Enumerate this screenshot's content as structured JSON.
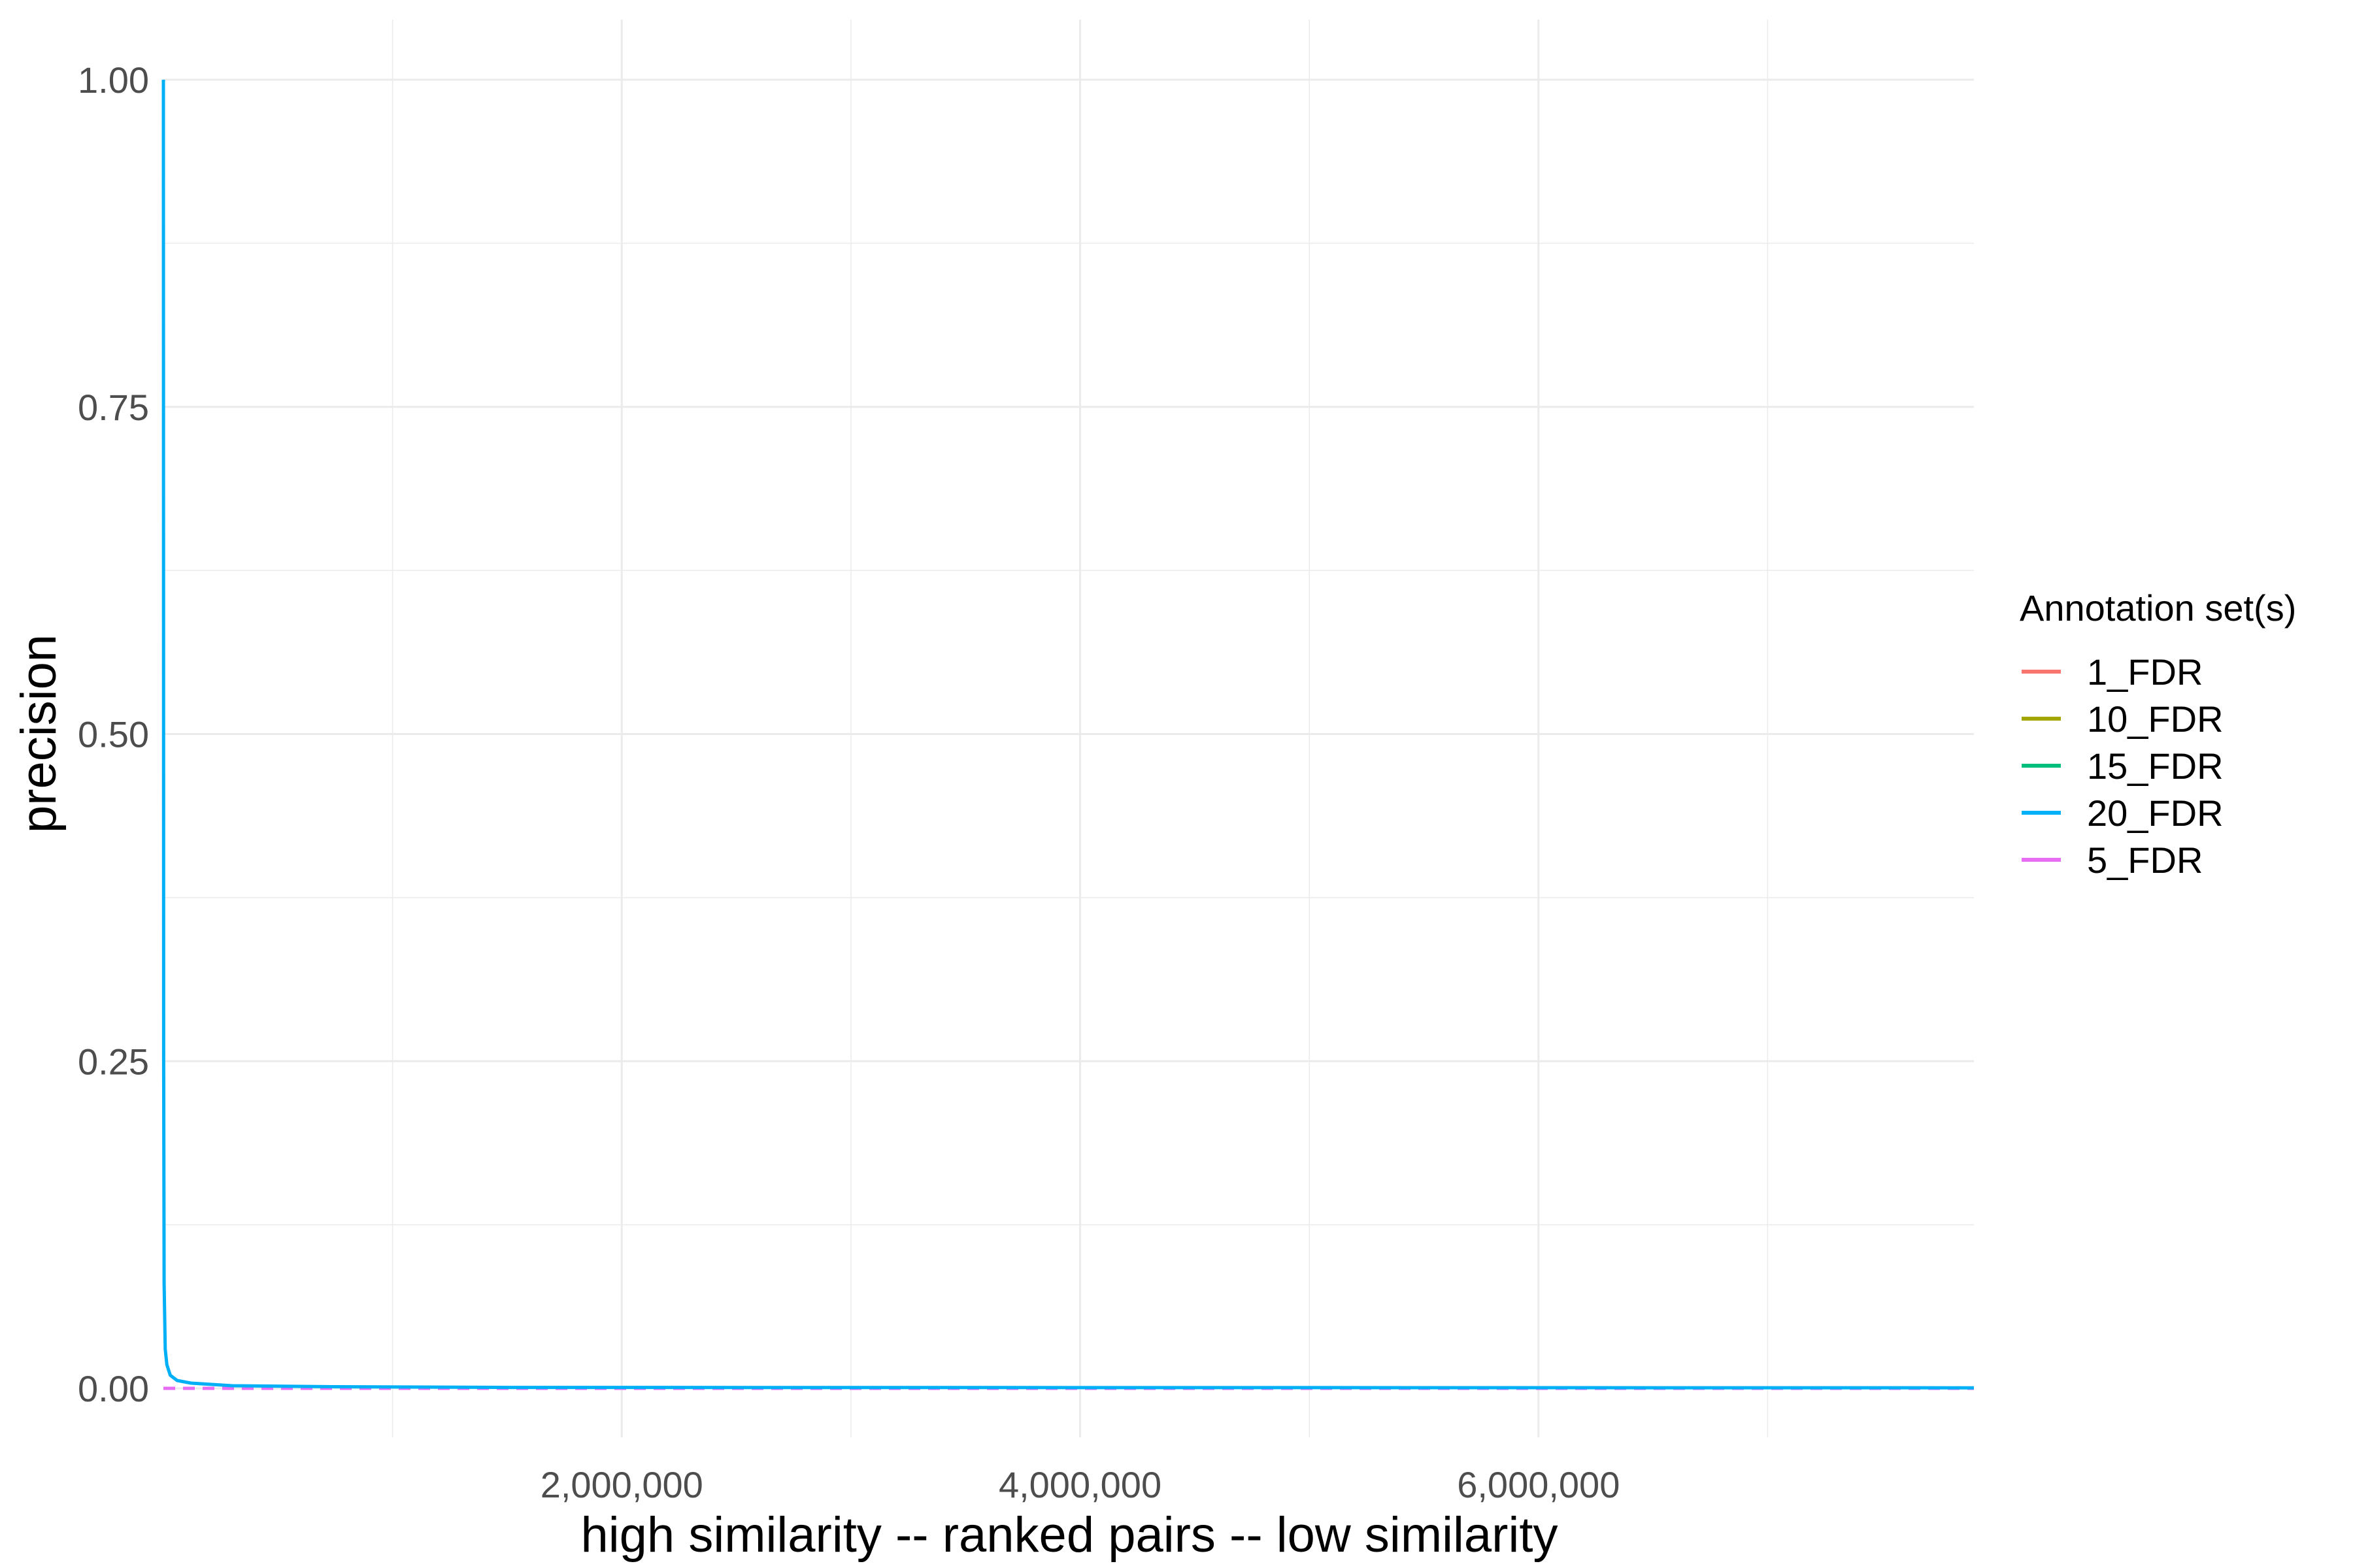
{
  "chart_data": {
    "type": "line",
    "title": "",
    "xlabel": "high similarity -- ranked pairs -- low similarity",
    "ylabel": "precision",
    "xlim": [
      0,
      7900000
    ],
    "ylim": [
      0,
      1
    ],
    "x_ticks": [
      2000000,
      4000000,
      6000000
    ],
    "x_tick_labels": [
      "2,000,000",
      "4,000,000",
      "6,000,000"
    ],
    "y_ticks": [
      0,
      0.25,
      0.5,
      0.75,
      1
    ],
    "y_tick_labels": [
      "0.00",
      "0.25",
      "0.50",
      "0.75",
      "1.00"
    ],
    "grid": true,
    "legend": {
      "title": "Annotation set(s)",
      "position": "right"
    },
    "series": [
      {
        "name": "1_FDR",
        "color": "#F8766D",
        "dashed": true,
        "x": [
          1,
          50000,
          200000,
          1000000,
          7900000
        ],
        "y": [
          0.0,
          0.0,
          0.0,
          0.0,
          0.0
        ]
      },
      {
        "name": "10_FDR",
        "color": "#A3A500",
        "dashed": true,
        "x": [
          1,
          50000,
          200000,
          1000000,
          7900000
        ],
        "y": [
          0.0,
          0.0,
          0.0,
          0.0,
          0.0
        ]
      },
      {
        "name": "15_FDR",
        "color": "#00BF7D",
        "dashed": true,
        "x": [
          1,
          50000,
          200000,
          1000000,
          7900000
        ],
        "y": [
          0.0,
          0.0,
          0.0,
          0.0,
          0.0
        ]
      },
      {
        "name": "20_FDR",
        "color": "#00B0F6",
        "dashed": false,
        "x": [
          1,
          1000,
          3000,
          8000,
          15000,
          30000,
          60000,
          120000,
          300000,
          700000,
          1500000,
          7900000
        ],
        "y": [
          1.0,
          0.25,
          0.08,
          0.03,
          0.018,
          0.01,
          0.006,
          0.004,
          0.002,
          0.0013,
          0.0007,
          0.0004
        ]
      },
      {
        "name": "5_FDR",
        "color": "#E76BF3",
        "dashed": true,
        "x": [
          1,
          50000,
          200000,
          1000000,
          7900000
        ],
        "y": [
          0.0,
          0.0,
          0.0,
          0.0,
          0.0
        ]
      }
    ]
  }
}
